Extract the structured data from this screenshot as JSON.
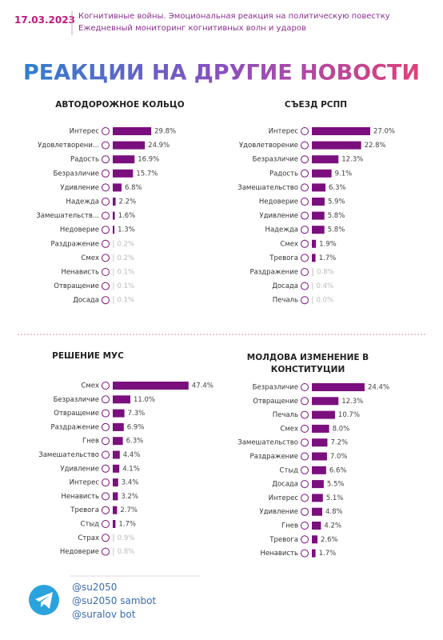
{
  "header": {
    "date": "17.03.2023",
    "lines": [
      "Когнитивные войны. Эмоциональная реакция на политическую повестку",
      "Ежедневный мониторинг когнитивных волн и ударов"
    ],
    "main_title": "РЕАКЦИИ НА ДРУГИЕ НОВОСТИ"
  },
  "footer": [
    "@su2050",
    "@su2050 sambot",
    "@suralov bot"
  ],
  "chart_data": [
    {
      "type": "bar",
      "orientation": "horizontal",
      "title": "АВТОДОРОЖНОЕ КОЛЬЦО",
      "categories": [
        "Интерес",
        "Удовлетворени...",
        "Радость",
        "Безразличие",
        "Удивление",
        "Надежда",
        "Замешательств...",
        "Недоверие",
        "Раздражение",
        "Смех",
        "Ненависть",
        "Отвращение",
        "Досада"
      ],
      "values": [
        29.8,
        24.9,
        16.9,
        15.7,
        6.8,
        2.2,
        1.6,
        1.3,
        0.2,
        0.2,
        0.1,
        0.1,
        0.1
      ],
      "value_labels": [
        "29.8%",
        "24.9%",
        "16.9%",
        "15.7%",
        "6.8%",
        "2.2%",
        "1.6%",
        "1.3%",
        "0.2%",
        "0.2%",
        "0.1%",
        "0.1%",
        "0.1%"
      ],
      "colors": [
        "#7b0f7e",
        "#7b0f7e",
        "#7b0f7e",
        "#7b0f7e",
        "#7b0f7e",
        "#7b0f7e",
        "#7b0f7e",
        "#7b0f7e",
        "#dddddd",
        "#dddddd",
        "#dddddd",
        "#dddddd",
        "#dddddd"
      ],
      "xlim": [
        0,
        62
      ]
    },
    {
      "type": "bar",
      "orientation": "horizontal",
      "title": "СЪЕЗД РСПП",
      "categories": [
        "Интерес",
        "Удовлетворение",
        "Безразличие",
        "Радость",
        "Замешательство",
        "Недоверие",
        "Удивление",
        "Надежда",
        "Смех",
        "Тревога",
        "Раздражение",
        "Досада",
        "Печаль"
      ],
      "values": [
        27.0,
        22.8,
        12.3,
        9.1,
        6.3,
        5.9,
        5.8,
        5.8,
        1.9,
        1.7,
        0.8,
        0.4,
        0.0
      ],
      "value_labels": [
        "27.0%",
        "22.8%",
        "12.3%",
        "9.1%",
        "6.3%",
        "5.9%",
        "5.8%",
        "5.8%",
        "1.9%",
        "1.7%",
        "0.8%",
        "0.4%",
        "0.0%"
      ],
      "colors": [
        "#7b0f7e",
        "#7b0f7e",
        "#7b0f7e",
        "#7b0f7e",
        "#7b0f7e",
        "#7b0f7e",
        "#7b0f7e",
        "#7b0f7e",
        "#7b0f7e",
        "#7b0f7e",
        "#dddddd",
        "#dddddd",
        "#dddddd"
      ],
      "xlim": [
        0,
        37
      ]
    },
    {
      "type": "bar",
      "orientation": "horizontal",
      "title": "РЕШЕНИЕ МУС",
      "categories": [
        "Смех",
        "Безразличие",
        "Отвращение",
        "Раздражение",
        "Гнев",
        "Замешательство",
        "Удивление",
        "Интерес",
        "Ненависть",
        "Тревога",
        "Стыд",
        "Страх",
        "Недоверие"
      ],
      "values": [
        47.4,
        11.0,
        7.3,
        6.9,
        6.3,
        4.4,
        4.1,
        3.4,
        3.2,
        2.7,
        1.7,
        0.9,
        0.8
      ],
      "value_labels": [
        "47.4%",
        "11.0%",
        "7.3%",
        "6.9%",
        "6.3%",
        "4.4%",
        "4.1%",
        "3.4%",
        "3.2%",
        "2.7%",
        "1.7%",
        "0.9%",
        "0.8%"
      ],
      "colors": [
        "#7b0f7e",
        "#7b0f7e",
        "#7b0f7e",
        "#7b0f7e",
        "#7b0f7e",
        "#7b0f7e",
        "#7b0f7e",
        "#7b0f7e",
        "#7b0f7e",
        "#7b0f7e",
        "#7b0f7e",
        "#dddddd",
        "#dddddd"
      ],
      "xlim": [
        0,
        50
      ]
    },
    {
      "type": "bar",
      "orientation": "horizontal",
      "title": "МОЛДОВА ИЗМЕНЕНИЕ В КОНСТИТУЦИИ",
      "categories": [
        "Безразличие",
        "Отвращение",
        "Печаль",
        "Смех",
        "Замешательство",
        "Раздражение",
        "Стыд",
        "Досада",
        "Интерес",
        "Удивление",
        "Гнев",
        "Тревога",
        "Ненависть"
      ],
      "values": [
        24.4,
        12.3,
        10.7,
        8.0,
        7.2,
        7.0,
        6.6,
        5.5,
        5.1,
        4.8,
        4.2,
        2.6,
        1.7
      ],
      "value_labels": [
        "24.4%",
        "12.3%",
        "10.7%",
        "8.0%",
        "7.2%",
        "7.0%",
        "6.6%",
        "5.5%",
        "5.1%",
        "4.8%",
        "4.2%",
        "2.6%",
        "1.7%"
      ],
      "colors": [
        "#7b0f7e",
        "#7b0f7e",
        "#7b0f7e",
        "#7b0f7e",
        "#7b0f7e",
        "#7b0f7e",
        "#7b0f7e",
        "#7b0f7e",
        "#7b0f7e",
        "#7b0f7e",
        "#7b0f7e",
        "#7b0f7e",
        "#7b0f7e"
      ],
      "xlim": [
        0,
        37
      ]
    }
  ]
}
